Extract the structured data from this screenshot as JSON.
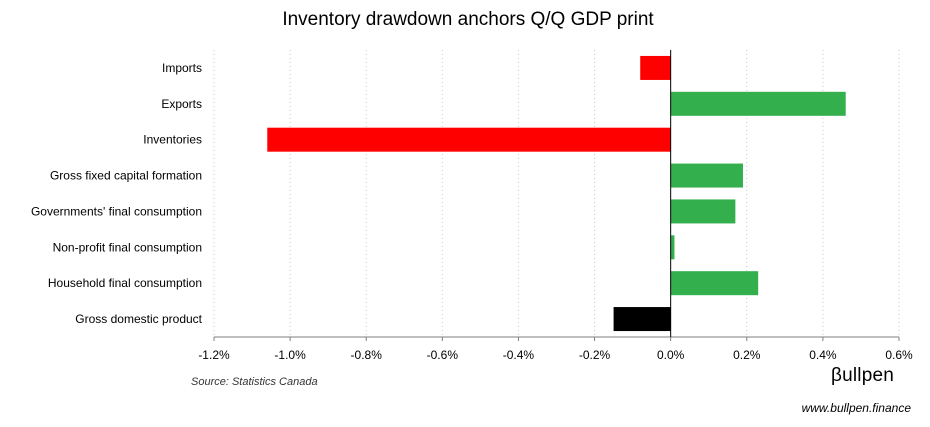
{
  "chart_data": {
    "type": "bar",
    "orientation": "horizontal",
    "title": "Inventory drawdown anchors Q/Q GDP print",
    "categories": [
      "Imports",
      "Exports",
      "Inventories",
      "Gross fixed capital formation",
      "Governments' final consumption",
      "Non-profit final consumption",
      "Household final consumption",
      "Gross domestic product"
    ],
    "values": [
      -0.08,
      0.46,
      -1.06,
      0.19,
      0.17,
      0.01,
      0.23,
      -0.15
    ],
    "bar_colors": [
      "#ff0000",
      "#33b04d",
      "#ff0000",
      "#33b04d",
      "#33b04d",
      "#33b04d",
      "#33b04d",
      "#000000"
    ],
    "xlim": [
      -1.2,
      0.6
    ],
    "x_ticks": [
      -1.2,
      -1.0,
      -0.8,
      -0.6,
      -0.4,
      -0.2,
      0.0,
      0.2,
      0.4,
      0.6
    ],
    "x_tick_labels": [
      "-1.2%",
      "-1.0%",
      "-0.8%",
      "-0.6%",
      "-0.4%",
      "-0.2%",
      "0.0%",
      "0.2%",
      "0.4%",
      "0.6%"
    ],
    "xlabel": "",
    "ylabel": "",
    "grid": "vertical dotted"
  },
  "source": "Source: Statistics Canada",
  "brand": {
    "name": "βullpen",
    "url": "www.bullpen.finance"
  }
}
